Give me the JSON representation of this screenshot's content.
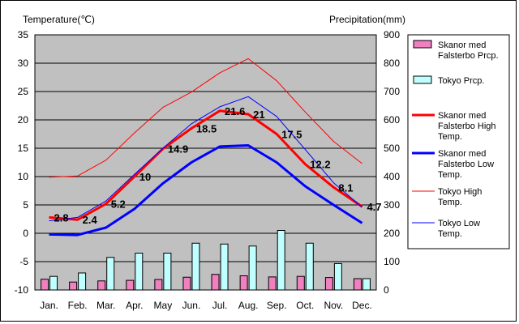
{
  "chart_data": {
    "type": "combo",
    "left_axis": {
      "label": "Temperature(℃)",
      "ylim": [
        -10,
        35
      ],
      "ticks": [
        -10,
        -5,
        0,
        5,
        10,
        15,
        20,
        25,
        30,
        35
      ]
    },
    "right_axis": {
      "label": "Precipitation(mm)",
      "ylim": [
        0,
        900
      ],
      "ticks": [
        0,
        100,
        200,
        300,
        400,
        500,
        600,
        700,
        800,
        900
      ]
    },
    "categories": [
      "Jan.",
      "Feb.",
      "Mar.",
      "Apr.",
      "May",
      "Jun.",
      "Jul.",
      "Aug.",
      "Sep.",
      "Oct.",
      "Nov.",
      "Dec."
    ],
    "series": [
      {
        "name": "Skanor med Falsterbo Prcp.",
        "kind": "bar",
        "axis": "right",
        "color": "#f080c0",
        "values": [
          38,
          28,
          32,
          34,
          37,
          45,
          55,
          50,
          46,
          48,
          44,
          40
        ]
      },
      {
        "name": "Tokyo Prcp.",
        "kind": "bar",
        "axis": "right",
        "color": "#c0ffff",
        "values": [
          48,
          60,
          115,
          130,
          130,
          165,
          162,
          155,
          210,
          165,
          93,
          40
        ]
      },
      {
        "name": "Skanor med Falsterbo High Temp.",
        "kind": "line",
        "axis": "left",
        "color": "#ff0000",
        "width": 3,
        "values": [
          2.8,
          2.4,
          5.2,
          10,
          14.9,
          18.5,
          21.6,
          21,
          17.5,
          12.2,
          8.1,
          4.7
        ]
      },
      {
        "name": "Skanor med Falsterbo Low Temp.",
        "kind": "line",
        "axis": "left",
        "color": "#0000ff",
        "width": 3,
        "values": [
          -0.2,
          -0.3,
          1.0,
          4.3,
          8.8,
          12.5,
          15.3,
          15.5,
          12.5,
          8.3,
          5.0,
          1.8
        ]
      },
      {
        "name": "Tokyo High Temp.",
        "kind": "line",
        "axis": "left",
        "color": "#ff0000",
        "width": 1,
        "values": [
          9.9,
          10.1,
          12.9,
          17.7,
          22.2,
          24.9,
          28.3,
          30.8,
          26.9,
          21.4,
          16.2,
          12.3
        ]
      },
      {
        "name": "Tokyo Low Temp.",
        "kind": "line",
        "axis": "left",
        "color": "#0000ff",
        "width": 1,
        "values": [
          2.2,
          2.8,
          5.7,
          10.4,
          15.0,
          19.3,
          22.3,
          24.1,
          20.6,
          14.8,
          8.9,
          4.6
        ]
      }
    ],
    "data_labels": {
      "series": "Skanor med Falsterbo High Temp.",
      "labels": [
        "2.8",
        "2.4",
        "5.2",
        "10",
        "14.9",
        "18.5",
        "21.6",
        "21",
        "17.5",
        "12.2",
        "8.1",
        "4.7"
      ]
    },
    "legend": {
      "position": "right",
      "entries": [
        {
          "lines": [
            "Skanor med",
            "Falsterbo Prcp."
          ]
        },
        {
          "lines": [
            "Tokyo Prcp."
          ]
        },
        {
          "lines": [
            "Skanor med",
            "Falsterbo High",
            "Temp."
          ]
        },
        {
          "lines": [
            "Skanor med",
            "Falsterbo Low",
            "Temp."
          ]
        },
        {
          "lines": [
            "Tokyo High",
            "Temp."
          ]
        },
        {
          "lines": [
            "Tokyo Low",
            "Temp."
          ]
        }
      ]
    },
    "grid": true,
    "plot_background": "#c0c0c0"
  }
}
